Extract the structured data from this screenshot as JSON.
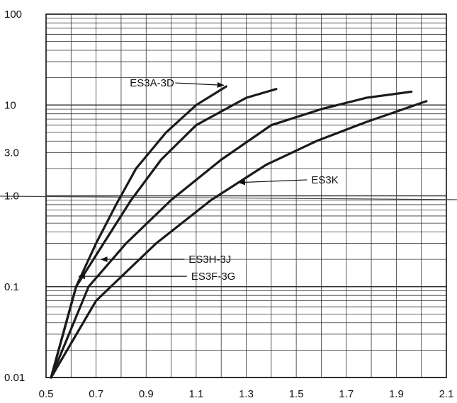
{
  "chart_data": {
    "type": "line",
    "title": "",
    "xlabel": "",
    "ylabel": "",
    "xlim": [
      0.5,
      2.1
    ],
    "ylim": [
      0.01,
      100
    ],
    "yscale": "log",
    "grid": true,
    "legend": "none",
    "x_ticks": [
      0.5,
      0.7,
      0.9,
      1.1,
      1.3,
      1.5,
      1.7,
      1.9,
      2.1
    ],
    "x_tick_labels": [
      "0.5",
      "0.7",
      "0.9",
      "1.1",
      "1.3",
      "1.5",
      "1.7",
      "1.9",
      "2.1"
    ],
    "y_ticks": [
      0.01,
      0.1,
      1.0,
      3.0,
      10,
      100
    ],
    "y_tick_labels": [
      "0.01",
      "0.1",
      "1.0",
      "3.0",
      "10",
      "100"
    ],
    "series": [
      {
        "name": "ES3A-3D",
        "x": [
          0.52,
          0.62,
          0.7,
          0.78,
          0.86,
          0.98,
          1.1,
          1.22
        ],
        "y": [
          0.01,
          0.1,
          0.3,
          0.8,
          2.0,
          5.0,
          10.0,
          16.0
        ]
      },
      {
        "name": "",
        "x": [
          0.52,
          0.62,
          0.73,
          0.84,
          0.96,
          1.1,
          1.3,
          1.42
        ],
        "y": [
          0.01,
          0.1,
          0.3,
          0.9,
          2.5,
          6.0,
          12.0,
          15.0
        ]
      },
      {
        "name": "ES3H-3J",
        "x": [
          0.52,
          0.67,
          0.82,
          1.0,
          1.2,
          1.4,
          1.6,
          1.78,
          1.96
        ],
        "y": [
          0.01,
          0.1,
          0.3,
          0.9,
          2.5,
          6.0,
          9.0,
          12.0,
          14.0
        ]
      },
      {
        "name": "ES3F-3G",
        "x": [
          0.52,
          0.7,
          0.94,
          1.16,
          1.38,
          1.58,
          1.78,
          2.02
        ],
        "y": [
          0.01,
          0.07,
          0.3,
          0.9,
          2.2,
          4.0,
          6.5,
          11.0
        ]
      }
    ],
    "reference_line": {
      "x": [
        0.5,
        2.1
      ],
      "y": [
        1.0,
        0.8
      ]
    },
    "annotations": [
      {
        "text": "ES3A-3D",
        "label_x": 0.835,
        "label_y": 17.5,
        "target_x": 1.21,
        "target_y": 16.5
      },
      {
        "text": "ES3K",
        "label_x": 1.56,
        "label_y": 1.5,
        "target_x": 1.27,
        "target_y": 1.4
      },
      {
        "text": "ES3H-3J",
        "label_x": 1.07,
        "label_y": 0.2,
        "target_x": 0.72,
        "target_y": 0.2
      },
      {
        "text": "ES3F-3G",
        "label_x": 1.08,
        "label_y": 0.13,
        "target_x": 0.63,
        "target_y": 0.13
      }
    ],
    "colors": {
      "series": "#1a1a1a",
      "grid": "#333333",
      "reference": "#444444"
    }
  }
}
